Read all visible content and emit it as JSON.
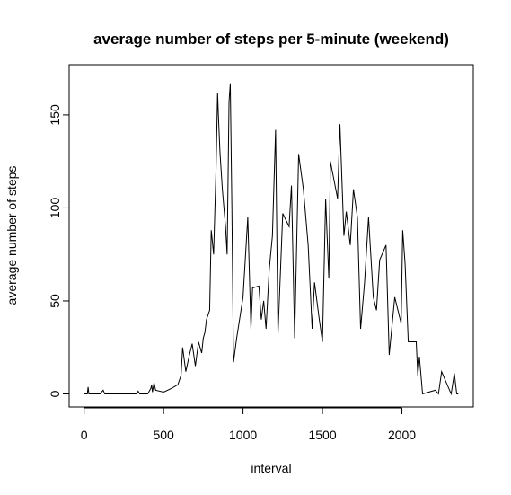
{
  "chart_data": {
    "type": "line",
    "title": "average number of steps per 5-minute (weekend)",
    "x_label": "interval",
    "y_label": "average number of steps",
    "x": [
      0,
      10,
      20,
      25,
      30,
      60,
      100,
      120,
      130,
      200,
      300,
      330,
      340,
      350,
      400,
      420,
      425,
      430,
      440,
      450,
      500,
      550,
      590,
      610,
      620,
      640,
      660,
      680,
      700,
      720,
      740,
      750,
      760,
      770,
      790,
      800,
      815,
      830,
      840,
      845,
      855,
      870,
      890,
      900,
      912,
      920,
      930,
      940,
      960,
      1000,
      1030,
      1050,
      1060,
      1100,
      1115,
      1130,
      1145,
      1165,
      1185,
      1205,
      1220,
      1250,
      1290,
      1305,
      1325,
      1350,
      1380,
      1410,
      1435,
      1450,
      1480,
      1500,
      1520,
      1540,
      1550,
      1595,
      1610,
      1635,
      1650,
      1675,
      1695,
      1720,
      1740,
      1765,
      1790,
      1820,
      1840,
      1860,
      1900,
      1920,
      1955,
      1995,
      2005,
      2020,
      2040,
      2090,
      2100,
      2110,
      2130,
      2210,
      2230,
      2250,
      2310,
      2330,
      2345,
      2355
    ],
    "values": [
      0,
      0,
      0,
      3.7,
      0,
      0,
      0,
      2,
      0,
      0,
      0,
      0,
      1.5,
      0,
      0,
      3,
      5,
      1,
      6,
      2,
      1,
      3,
      5,
      10,
      25,
      12,
      20,
      27,
      15,
      28,
      22,
      30,
      33,
      40,
      45,
      88,
      75,
      120,
      162,
      150,
      130,
      110,
      90,
      75,
      157,
      167,
      100,
      17,
      30,
      52,
      95,
      35,
      57,
      58,
      40,
      50,
      35,
      67,
      85,
      142,
      32,
      97,
      90,
      112,
      30,
      129,
      110,
      80,
      35,
      60,
      40,
      28,
      105,
      62,
      125,
      105,
      145,
      85,
      98,
      80,
      110,
      95,
      35,
      60,
      95,
      52,
      45,
      72,
      80,
      21,
      52,
      38,
      88,
      70,
      28,
      28,
      10,
      20,
      0,
      2,
      0,
      12,
      0,
      11,
      0,
      0
    ],
    "color": "#000000",
    "xlim": [
      -94.2,
      2449.2
    ],
    "xticks": [
      0,
      500,
      1000,
      1500,
      2000
    ],
    "ylim": [
      -7,
      177
    ],
    "yticks": [
      0,
      50,
      100,
      150
    ]
  }
}
